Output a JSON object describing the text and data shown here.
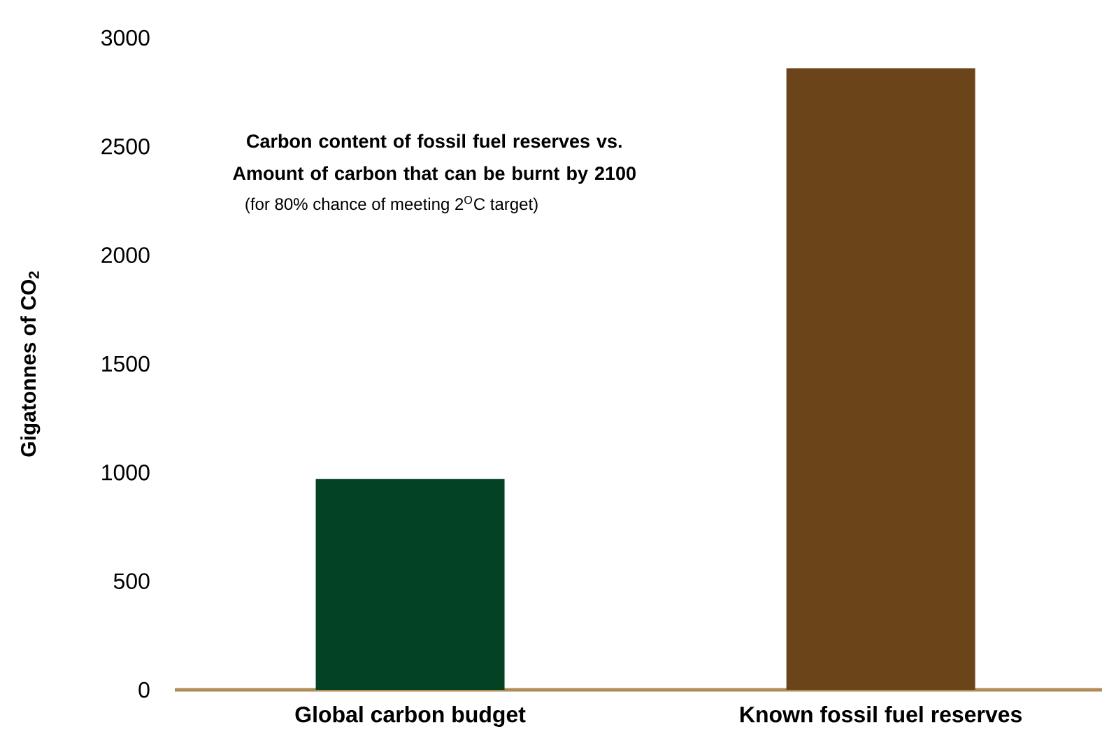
{
  "chart_data": {
    "type": "bar",
    "title": "Carbon content of fossil fuel reserves vs. Amount of carbon that can be burnt by 2100",
    "subtitle": "(for 80% chance of meeting 2$^{O}$C target)",
    "ylabel": "Gigatonnes of CO$_{2}$",
    "categories": [
      "Global carbon budget",
      "Known fossil fuel reserves"
    ],
    "values": [
      970,
      2860
    ],
    "colors": [
      "#034222",
      "#6b4519"
    ],
    "ylim": [
      0,
      3000
    ],
    "yticks": [
      0,
      500,
      1000,
      1500,
      2000,
      2500,
      3000
    ],
    "grid": false
  }
}
